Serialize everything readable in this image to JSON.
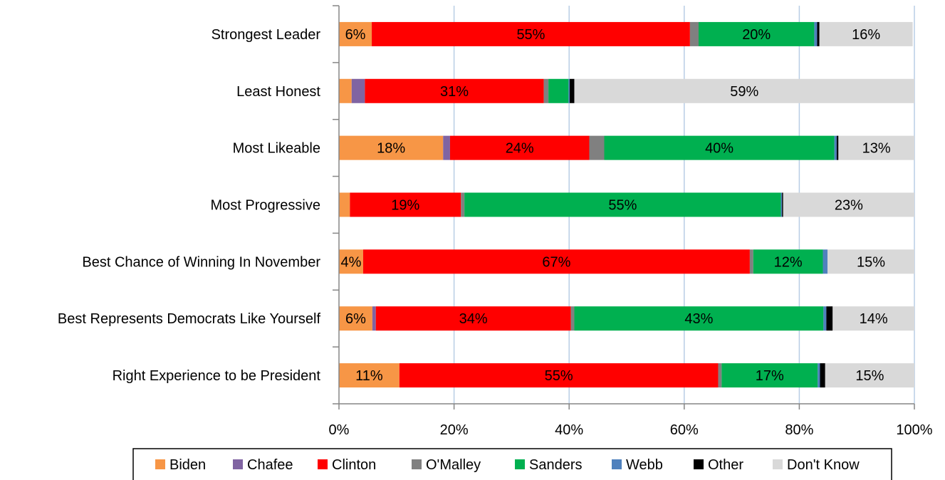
{
  "chart_data": {
    "type": "bar",
    "orientation": "horizontal",
    "stacked": "percent",
    "categories": [
      "Strongest Leader",
      "Least Honest",
      "Most Likeable",
      "Most Progressive",
      "Best Chance of Winning In November",
      "Best Represents Democrats Like Yourself",
      "Right Experience to be President"
    ],
    "series": [
      {
        "name": "Biden",
        "color": "#F79646",
        "values": [
          5.7,
          2.2,
          18.1,
          1.9,
          4.2,
          5.8,
          10.5
        ]
      },
      {
        "name": "Chafee",
        "color": "#8064A2",
        "values": [
          0.0,
          2.3,
          1.2,
          0.0,
          0.0,
          0.6,
          0.0
        ]
      },
      {
        "name": "Clinton",
        "color": "#FF0000",
        "values": [
          55.3,
          31.1,
          24.2,
          19.3,
          67.2,
          33.9,
          55.4
        ]
      },
      {
        "name": "O'Malley",
        "color": "#808080",
        "values": [
          1.5,
          0.8,
          2.6,
          0.6,
          0.6,
          0.6,
          0.6
        ]
      },
      {
        "name": "Sanders",
        "color": "#00B050",
        "values": [
          20.1,
          3.5,
          40.0,
          55.0,
          12.1,
          43.3,
          16.7
        ]
      },
      {
        "name": "Webb",
        "color": "#4F81BD",
        "values": [
          0.5,
          0.2,
          0.4,
          0.2,
          0.8,
          0.5,
          0.4
        ]
      },
      {
        "name": "Other",
        "color": "#000000",
        "values": [
          0.4,
          0.8,
          0.3,
          0.2,
          0.0,
          1.1,
          0.9
        ]
      },
      {
        "name": "Don't Know",
        "color": "#D9D9D9",
        "values": [
          16.2,
          59.1,
          13.2,
          22.8,
          15.1,
          14.2,
          15.5
        ]
      }
    ],
    "data_labels": [
      [
        {
          "series": "Biden",
          "text": "6%"
        },
        {
          "series": "Clinton",
          "text": "55%"
        },
        {
          "series": "Sanders",
          "text": "20%"
        },
        {
          "series": "Don't Know",
          "text": "16%"
        }
      ],
      [
        {
          "series": "Clinton",
          "text": "31%"
        },
        {
          "series": "Don't Know",
          "text": "59%"
        }
      ],
      [
        {
          "series": "Biden",
          "text": "18%"
        },
        {
          "series": "Clinton",
          "text": "24%"
        },
        {
          "series": "Sanders",
          "text": "40%"
        },
        {
          "series": "Don't Know",
          "text": "13%"
        }
      ],
      [
        {
          "series": "Clinton",
          "text": "19%"
        },
        {
          "series": "Sanders",
          "text": "55%"
        },
        {
          "series": "Don't Know",
          "text": "23%"
        }
      ],
      [
        {
          "series": "Biden",
          "text": "4%"
        },
        {
          "series": "Clinton",
          "text": "67%"
        },
        {
          "series": "Sanders",
          "text": "12%"
        },
        {
          "series": "Don't Know",
          "text": "15%"
        }
      ],
      [
        {
          "series": "Biden",
          "text": "6%"
        },
        {
          "series": "Clinton",
          "text": "34%"
        },
        {
          "series": "Sanders",
          "text": "43%"
        },
        {
          "series": "Don't Know",
          "text": "14%"
        }
      ],
      [
        {
          "series": "Biden",
          "text": "11%"
        },
        {
          "series": "Clinton",
          "text": "55%"
        },
        {
          "series": "Sanders",
          "text": "17%"
        },
        {
          "series": "Don't Know",
          "text": "15%"
        }
      ]
    ],
    "x_ticks": [
      "0%",
      "20%",
      "40%",
      "60%",
      "80%",
      "100%"
    ],
    "xlim": [
      0,
      100
    ],
    "grid": "vertical",
    "gridline_color": "#B9CDE5",
    "legend_position": "bottom",
    "title": "",
    "xlabel": "",
    "ylabel": ""
  }
}
